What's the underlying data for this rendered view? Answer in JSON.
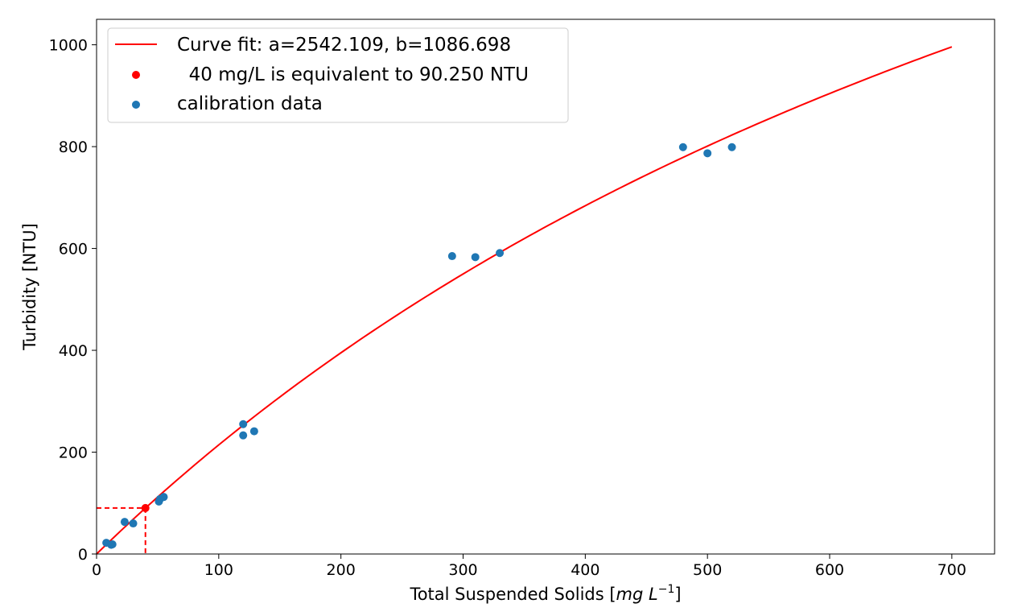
{
  "chart_data": {
    "type": "scatter",
    "xlabel_main": "Total Suspended Solids [",
    "xlabel_unit_prefix": "mg L",
    "xlabel_superscript": "−1",
    "xlabel_close": "]",
    "ylabel": "Turbidity [NTU]",
    "xlim": [
      0,
      735
    ],
    "ylim": [
      0,
      1050
    ],
    "xticks": [
      0,
      100,
      200,
      300,
      400,
      500,
      600,
      700
    ],
    "yticks": [
      0,
      200,
      400,
      600,
      800,
      1000
    ],
    "grid": false,
    "legend_placement": "upper-left",
    "legend": {
      "fit": "Curve fit: a=2542.109, b=1086.698",
      "point": "  40 mg/L is equivalent to 90.250 NTU",
      "data": "calibration data"
    },
    "fit": {
      "a": 2542.109,
      "b": 1086.698,
      "x_range": [
        0,
        700
      ],
      "color": "#ff0000"
    },
    "highlight_point": {
      "x": 40,
      "y": 90.25,
      "color": "#ff0000"
    },
    "series": [
      {
        "name": "calibration data",
        "color": "#1f77b4",
        "points": [
          [
            8,
            22
          ],
          [
            12,
            18
          ],
          [
            13,
            19
          ],
          [
            23,
            63
          ],
          [
            30,
            60
          ],
          [
            51,
            103
          ],
          [
            52,
            108
          ],
          [
            55,
            112
          ],
          [
            120,
            255
          ],
          [
            120,
            233
          ],
          [
            129,
            241
          ],
          [
            291,
            585
          ],
          [
            310,
            583
          ],
          [
            330,
            591
          ],
          [
            480,
            799
          ],
          [
            500,
            787
          ],
          [
            520,
            799
          ]
        ]
      }
    ]
  }
}
